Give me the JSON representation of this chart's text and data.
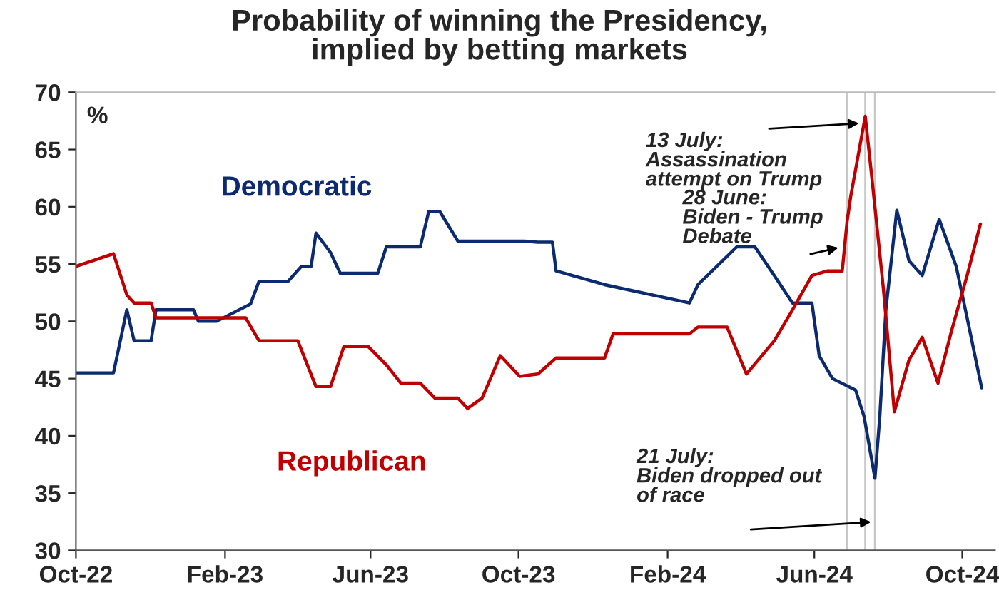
{
  "chart_data": {
    "type": "line",
    "title": "Probability of winning the Presidency,\nimplied by betting markets",
    "ylabel": "%",
    "xlim": [
      "2022-10-01",
      "2024-10-28"
    ],
    "xticks": [
      {
        "value": "2022-10-01",
        "label": "Oct-22"
      },
      {
        "value": "2023-02-01",
        "label": "Feb-23"
      },
      {
        "value": "2023-06-01",
        "label": "Jun-23"
      },
      {
        "value": "2023-10-01",
        "label": "Oct-23"
      },
      {
        "value": "2024-02-01",
        "label": "Feb-24"
      },
      {
        "value": "2024-06-01",
        "label": "Jun-24"
      },
      {
        "value": "2024-10-01",
        "label": "Oct-24"
      }
    ],
    "ylim": [
      30,
      70
    ],
    "yticks": [
      30,
      35,
      40,
      45,
      50,
      55,
      60,
      65,
      70
    ],
    "grid": false,
    "legend": false,
    "series": [
      {
        "name": "Democratic",
        "color": "#0b2a6f",
        "x": [
          "2022-10-01",
          "2022-11-01",
          "2022-11-12",
          "2022-11-18",
          "2022-12-02",
          "2022-12-06",
          "2023-01-06",
          "2023-01-10",
          "2023-01-25",
          "2023-02-22",
          "2023-03-01",
          "2023-03-25",
          "2023-04-05",
          "2023-04-13",
          "2023-04-17",
          "2023-04-29",
          "2023-05-07",
          "2023-06-07",
          "2023-06-14",
          "2023-07-12",
          "2023-07-19",
          "2023-07-28",
          "2023-08-12",
          "2023-10-06",
          "2023-10-17",
          "2023-10-29",
          "2023-11-01",
          "2023-12-11",
          "2024-02-19",
          "2024-02-26",
          "2024-03-29",
          "2024-04-13",
          "2024-04-29",
          "2024-05-14",
          "2024-05-30",
          "2024-06-05",
          "2024-06-16",
          "2024-07-05",
          "2024-07-12",
          "2024-07-21",
          "2024-07-25",
          "2024-07-30",
          "2024-08-08",
          "2024-08-18",
          "2024-08-29",
          "2024-09-12",
          "2024-09-26",
          "2024-10-05",
          "2024-10-17"
        ],
        "values": [
          45.5,
          45.5,
          51,
          48.3,
          48.3,
          51,
          51,
          50,
          50,
          51.5,
          53.5,
          53.5,
          54.8,
          54.8,
          57.7,
          56,
          54.2,
          54.2,
          56.5,
          56.5,
          59.6,
          59.6,
          57,
          57,
          56.9,
          56.9,
          54.4,
          53.2,
          51.6,
          53.2,
          56.5,
          56.5,
          54,
          51.6,
          51.6,
          47,
          45,
          44,
          41.7,
          36.3,
          41.7,
          51,
          59.7,
          55.3,
          54,
          58.9,
          54.8,
          50.3,
          44.2
        ]
      },
      {
        "name": "Republican",
        "color": "#c00000",
        "x": [
          "2022-10-01",
          "2022-11-01",
          "2022-11-12",
          "2022-11-18",
          "2022-12-02",
          "2022-12-06",
          "2023-02-18",
          "2023-03-01",
          "2023-04-02",
          "2023-04-17",
          "2023-04-29",
          "2023-05-10",
          "2023-05-30",
          "2023-06-14",
          "2023-06-26",
          "2023-07-12",
          "2023-07-24",
          "2023-08-12",
          "2023-08-20",
          "2023-09-01",
          "2023-09-16",
          "2023-10-02",
          "2023-10-17",
          "2023-11-01",
          "2023-12-11",
          "2023-12-18",
          "2024-02-19",
          "2024-02-26",
          "2024-03-21",
          "2024-04-06",
          "2024-04-29",
          "2024-05-14",
          "2024-05-30",
          "2024-06-12",
          "2024-06-24",
          "2024-06-28",
          "2024-07-01",
          "2024-07-13",
          "2024-07-18",
          "2024-07-28",
          "2024-08-06",
          "2024-08-18",
          "2024-08-29",
          "2024-09-11",
          "2024-09-22",
          "2024-10-05",
          "2024-10-16"
        ],
        "values": [
          54.8,
          55.9,
          52.3,
          51.6,
          51.6,
          50.3,
          50.3,
          48.3,
          48.3,
          44.3,
          44.3,
          47.8,
          47.8,
          46.2,
          44.6,
          44.6,
          43.3,
          43.3,
          42.4,
          43.3,
          47,
          45.2,
          45.4,
          46.8,
          46.8,
          48.9,
          48.9,
          49.5,
          49.5,
          45.4,
          48.3,
          51,
          54,
          54.4,
          54.4,
          58.7,
          60.9,
          67.9,
          63,
          52.8,
          42.1,
          46.6,
          48.6,
          44.6,
          49.1,
          54,
          58.5
        ]
      }
    ],
    "ref_lines": [
      {
        "axis": "x",
        "value": "2024-06-28",
        "label": "28 June:\nBiden - Trump\nDebate",
        "color": "#c8c8c8"
      },
      {
        "axis": "x",
        "value": "2024-07-13",
        "label": "13 July:\nAssassination\nattempt on Trump",
        "color": "#c8c8c8"
      },
      {
        "axis": "x",
        "value": "2024-07-21",
        "label": "21 July:\nBiden dropped out\nof race",
        "color": "#c8c8c8"
      }
    ]
  }
}
